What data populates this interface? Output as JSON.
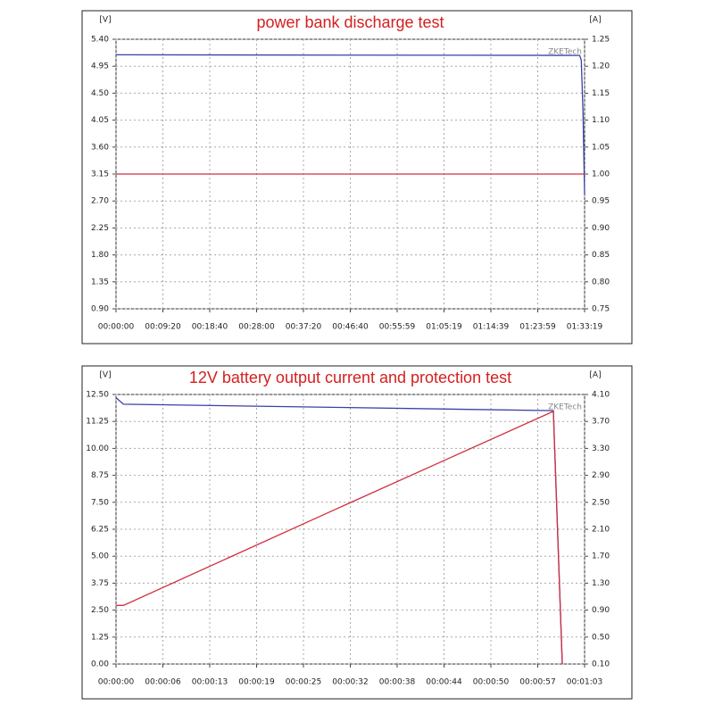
{
  "chart_data": [
    {
      "type": "line",
      "title": "power bank discharge test",
      "y_label": "[V]",
      "y2_label": "[A]",
      "annotation": "ZKETech",
      "grid": true,
      "x": [
        0,
        5540,
        5560,
        5580,
        5599
      ],
      "xlim": [
        0,
        5599
      ],
      "xticks": [
        {
          "value": 0,
          "label": "00:00:00"
        },
        {
          "value": 559.9,
          "label": "00:09:20"
        },
        {
          "value": 1119.8,
          "label": "00:18:40"
        },
        {
          "value": 1679.7,
          "label": "00:28:00"
        },
        {
          "value": 2239.6,
          "label": "00:37:20"
        },
        {
          "value": 2799.5,
          "label": "00:46:40"
        },
        {
          "value": 3359.4,
          "label": "00:55:59"
        },
        {
          "value": 3919.3,
          "label": "01:05:19"
        },
        {
          "value": 4479.2,
          "label": "01:14:39"
        },
        {
          "value": 5039.1,
          "label": "01:23:59"
        },
        {
          "value": 5599,
          "label": "01:33:19"
        }
      ],
      "ylim": [
        0.9,
        5.4
      ],
      "yticks": [
        {
          "value": 0.9,
          "label": "0.90"
        },
        1.35,
        {
          "value": 1.8,
          "label": "1.80"
        },
        2.25,
        {
          "value": 2.7,
          "label": "2.70"
        },
        3.15,
        {
          "value": 3.6,
          "label": "3.60"
        },
        4.05,
        {
          "value": 4.5,
          "label": "4.50"
        },
        4.95,
        {
          "value": 5.4,
          "label": "5.40"
        }
      ],
      "y2lim": [
        0.75,
        1.25
      ],
      "y2ticks": [
        0.75,
        {
          "value": 0.8,
          "label": "0.80"
        },
        0.85,
        {
          "value": 0.9,
          "label": "0.90"
        },
        0.95,
        {
          "value": 1,
          "label": "1.00"
        },
        1.05,
        {
          "value": 1.1,
          "label": "1.10"
        },
        1.15,
        {
          "value": 1.2,
          "label": "1.20"
        },
        1.25
      ],
      "series": [
        {
          "color": "#3b3fa3",
          "values": [
            5.14,
            5.13,
            5.05,
            4.2,
            2.8
          ]
        },
        {
          "color": "#d03040",
          "axis": "y2",
          "values": [
            1.0,
            1.0,
            1.0,
            1.0,
            1.0
          ]
        }
      ]
    },
    {
      "type": "line",
      "title": "12V battery output current and protection test",
      "y_label": "[V]",
      "y2_label": "[A]",
      "annotation": "ZKETech",
      "grid": true,
      "x": [
        0,
        1,
        30,
        58.8,
        60
      ],
      "xlim": [
        0,
        63
      ],
      "xticks": [
        {
          "value": 0,
          "label": "00:00:00"
        },
        {
          "value": 6.3,
          "label": "00:00:06"
        },
        {
          "value": 12.6,
          "label": "00:00:13"
        },
        {
          "value": 18.9,
          "label": "00:00:19"
        },
        {
          "value": 25.2,
          "label": "00:00:25"
        },
        {
          "value": 31.5,
          "label": "00:00:32"
        },
        {
          "value": 37.8,
          "label": "00:00:38"
        },
        {
          "value": 44.1,
          "label": "00:00:44"
        },
        {
          "value": 50.4,
          "label": "00:00:50"
        },
        {
          "value": 56.7,
          "label": "00:00:57"
        },
        {
          "value": 63,
          "label": "00:01:03"
        }
      ],
      "ylim": [
        0,
        12.5
      ],
      "yticks": [
        {
          "value": 0,
          "label": "0.00"
        },
        1.25,
        {
          "value": 2.5,
          "label": "2.50"
        },
        3.75,
        {
          "value": 5,
          "label": "5.00"
        },
        6.25,
        {
          "value": 7.5,
          "label": "7.50"
        },
        8.75,
        {
          "value": 10,
          "label": "10.00"
        },
        11.25,
        {
          "value": 12.5,
          "label": "12.50"
        }
      ],
      "y2lim": [
        0.1,
        4.1
      ],
      "y2ticks": [
        {
          "value": 0.1,
          "label": "0.10"
        },
        {
          "value": 0.5,
          "label": "0.50"
        },
        {
          "value": 0.9,
          "label": "0.90"
        },
        {
          "value": 1.3,
          "label": "1.30"
        },
        {
          "value": 1.7,
          "label": "1.70"
        },
        {
          "value": 2.1,
          "label": "2.10"
        },
        {
          "value": 2.5,
          "label": "2.50"
        },
        {
          "value": 2.9,
          "label": "2.90"
        },
        {
          "value": 3.3,
          "label": "3.30"
        },
        {
          "value": 3.7,
          "label": "3.70"
        },
        {
          "value": 4.1,
          "label": "4.10"
        }
      ],
      "series": [
        {
          "color": "#3b3fa3",
          "values": [
            12.35,
            12.05,
            11.9,
            11.75,
            0.0
          ]
        },
        {
          "color": "#d03040",
          "axis": "y2",
          "values": [
            0.97,
            0.97,
            2.42,
            3.85,
            0.1
          ]
        }
      ]
    }
  ]
}
